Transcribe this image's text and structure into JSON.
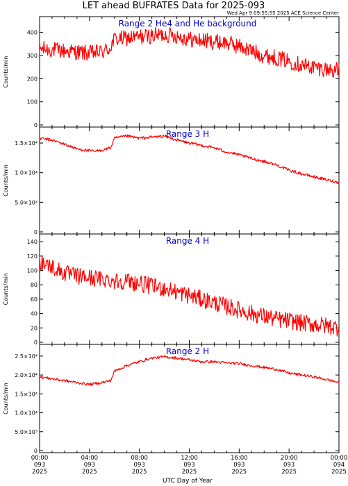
{
  "title": "LET ahead BUFRATES Data for 2025-093",
  "timestamp": "Wed Apr  9 09:55:55 2025 ACE Science Center",
  "xlabel": "UTC Day of Year",
  "x_ticks": [
    {
      "time": "00:00",
      "doy": "093",
      "year": "2025"
    },
    {
      "time": "04:00",
      "doy": "093",
      "year": "2025"
    },
    {
      "time": "08:00",
      "doy": "093",
      "year": "2025"
    },
    {
      "time": "12:00",
      "doy": "093",
      "year": "2025"
    },
    {
      "time": "16:00",
      "doy": "093",
      "year": "2025"
    },
    {
      "time": "20:00",
      "doy": "093",
      "year": "2025"
    },
    {
      "time": "00:00",
      "doy": "094",
      "year": "2025"
    }
  ],
  "colors": {
    "series": "#ff0000",
    "panel_label": "#0000cc",
    "axes": "#000000",
    "text": "#000000"
  },
  "chart_data": [
    {
      "type": "line",
      "panel_label": "Range 2 He4 and He background",
      "ylabel": "Counts/min",
      "ylim": [
        0,
        450
      ],
      "y_ticks": [
        {
          "v": 0,
          "label": "0"
        },
        {
          "v": 100,
          "label": "100"
        },
        {
          "v": 200,
          "label": "200"
        },
        {
          "v": 300,
          "label": "300"
        },
        {
          "v": 400,
          "label": "400"
        }
      ],
      "series": [
        {
          "noise": 35,
          "x": [
            0,
            1,
            2,
            3,
            4,
            5,
            5.6,
            6,
            7,
            8,
            9,
            10,
            11,
            12,
            13,
            14,
            15,
            16,
            17,
            18,
            19,
            20,
            21,
            22,
            23,
            24
          ],
          "y": [
            330,
            325,
            320,
            315,
            310,
            315,
            330,
            370,
            375,
            380,
            385,
            390,
            385,
            370,
            365,
            360,
            355,
            340,
            320,
            300,
            290,
            275,
            260,
            250,
            240,
            235
          ]
        }
      ]
    },
    {
      "type": "line",
      "panel_label": "Range 3 H",
      "ylabel": "Counts/min",
      "ylim": [
        0,
        17000
      ],
      "y_ticks": [
        {
          "v": 0,
          "label": "0"
        },
        {
          "v": 5000,
          "label": "5.0×10³"
        },
        {
          "v": 10000,
          "label": "1.0×10⁴"
        },
        {
          "v": 15000,
          "label": "1.5×10⁴"
        }
      ],
      "series": [
        {
          "noise": 250,
          "x": [
            0,
            1,
            2,
            3,
            4,
            4.5,
            5,
            5.7,
            6,
            7,
            8,
            9,
            10,
            11,
            12,
            13,
            14,
            15,
            16,
            17,
            18,
            19,
            20,
            21,
            22,
            23,
            24
          ],
          "y": [
            15800,
            15500,
            14800,
            14000,
            13700,
            13600,
            13800,
            14200,
            15800,
            16200,
            15800,
            16000,
            16200,
            15500,
            15000,
            14600,
            14200,
            13500,
            13000,
            12400,
            11900,
            11300,
            10400,
            9800,
            9300,
            8800,
            8300
          ]
        }
      ]
    },
    {
      "type": "line",
      "panel_label": "Range 4 H",
      "ylabel": "Counts/min",
      "ylim": [
        0,
        145
      ],
      "y_ticks": [
        {
          "v": 0,
          "label": "0"
        },
        {
          "v": 20,
          "label": "20"
        },
        {
          "v": 40,
          "label": "40"
        },
        {
          "v": 60,
          "label": "60"
        },
        {
          "v": 80,
          "label": "80"
        },
        {
          "v": 100,
          "label": "100"
        },
        {
          "v": 120,
          "label": "120"
        },
        {
          "v": 140,
          "label": "140"
        }
      ],
      "series": [
        {
          "noise": 12,
          "x": [
            0,
            0.5,
            1,
            2,
            3,
            4,
            5,
            6,
            7,
            8,
            9,
            10,
            11,
            12,
            13,
            14,
            15,
            16,
            17,
            18,
            19,
            20,
            21,
            22,
            23,
            24
          ],
          "y": [
            112,
            110,
            105,
            96,
            92,
            90,
            88,
            86,
            85,
            82,
            78,
            75,
            70,
            65,
            60,
            55,
            50,
            45,
            40,
            36,
            32,
            30,
            27,
            25,
            23,
            20
          ]
        }
      ]
    },
    {
      "type": "line",
      "panel_label": "Range 2 H",
      "ylabel": "Counts/min",
      "ylim": [
        0,
        27000
      ],
      "y_ticks": [
        {
          "v": 0,
          "label": "0"
        },
        {
          "v": 5000,
          "label": "5.0×10³"
        },
        {
          "v": 10000,
          "label": "1.0×10⁴"
        },
        {
          "v": 15000,
          "label": "1.5×10⁴"
        },
        {
          "v": 20000,
          "label": "2.0×10⁴"
        },
        {
          "v": 25000,
          "label": "2.5×10⁴"
        }
      ],
      "series": [
        {
          "noise": 350,
          "x": [
            0,
            1,
            2,
            3,
            4,
            5,
            5.7,
            6,
            7,
            8,
            9,
            10,
            11,
            12,
            13,
            14,
            15,
            16,
            17,
            18,
            19,
            20,
            21,
            22,
            23,
            24
          ],
          "y": [
            19500,
            19000,
            18500,
            18000,
            17500,
            18000,
            18500,
            21000,
            22500,
            23500,
            24500,
            24800,
            24500,
            24000,
            23500,
            23500,
            23200,
            23000,
            22500,
            22000,
            21500,
            20500,
            20000,
            19500,
            18800,
            18000
          ]
        }
      ]
    }
  ]
}
